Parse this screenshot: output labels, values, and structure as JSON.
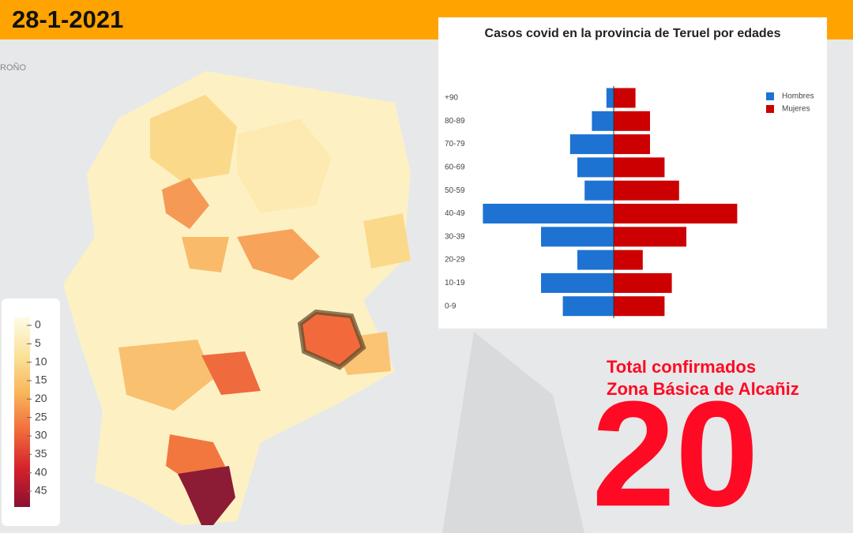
{
  "header": {
    "date": "28-1-2021"
  },
  "map": {
    "labels": [
      "ROÑO"
    ]
  },
  "colorbar": {
    "ticks": [
      0,
      5,
      10,
      15,
      20,
      25,
      30,
      35,
      40,
      45
    ]
  },
  "chart_data": {
    "type": "pyramid",
    "title": "Casos covid en la provincia de Teruel por edades",
    "categories": [
      "+90",
      "80-89",
      "70-79",
      "60-69",
      "50-59",
      "40-49",
      "30-39",
      "20-29",
      "10-19",
      "0-9"
    ],
    "series": [
      {
        "name": "Hombres",
        "color": "#1e73d2",
        "side": "left",
        "values": [
          1,
          3,
          6,
          5,
          4,
          18,
          10,
          5,
          10,
          7
        ]
      },
      {
        "name": "Mujeres",
        "color": "#cc0000",
        "side": "right",
        "values": [
          3,
          5,
          5,
          7,
          9,
          17,
          10,
          4,
          8,
          7
        ]
      }
    ],
    "legend": "top-right"
  },
  "total": {
    "lines": [
      "Total confirmados",
      "Zona Básica de Alcañiz"
    ],
    "value": "20"
  }
}
